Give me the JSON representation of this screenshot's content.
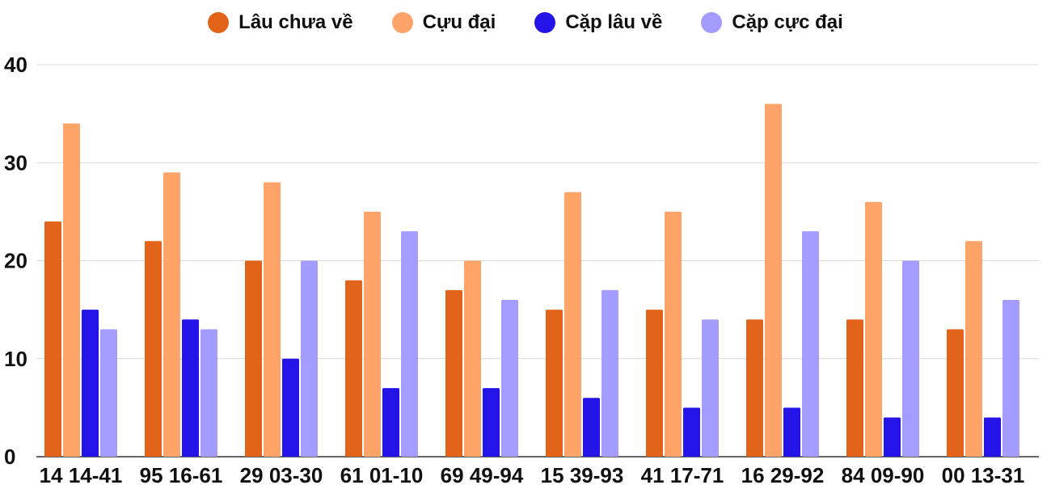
{
  "chart_data": {
    "type": "bar",
    "title": "",
    "xlabel": "",
    "ylabel": "",
    "ylim": [
      0,
      40
    ],
    "yticks": [
      "0",
      "10",
      "20",
      "30",
      "40"
    ],
    "grid": true,
    "legend_position": "top-center",
    "categories": [
      "14 14-41",
      "95 16-61",
      "29 03-30",
      "61 01-10",
      "69 49-94",
      "15 39-93",
      "41 17-71",
      "16 29-92",
      "84 09-90",
      "00 13-31"
    ],
    "series": [
      {
        "name": "Lâu chưa về",
        "color": "#E2641A",
        "values": [
          24,
          22,
          20,
          18,
          17,
          15,
          15,
          14,
          14,
          13
        ]
      },
      {
        "name": "Cựu đại",
        "color": "#FFA468",
        "values": [
          34,
          29,
          28,
          25,
          20,
          27,
          25,
          36,
          26,
          22
        ]
      },
      {
        "name": "Cặp lâu về",
        "color": "#2414E8",
        "values": [
          15,
          14,
          10,
          7,
          7,
          6,
          5,
          5,
          4,
          4
        ]
      },
      {
        "name": "Cặp cực đại",
        "color": "#A49CFF",
        "values": [
          13,
          13,
          20,
          23,
          16,
          17,
          14,
          23,
          20,
          16
        ]
      }
    ]
  }
}
